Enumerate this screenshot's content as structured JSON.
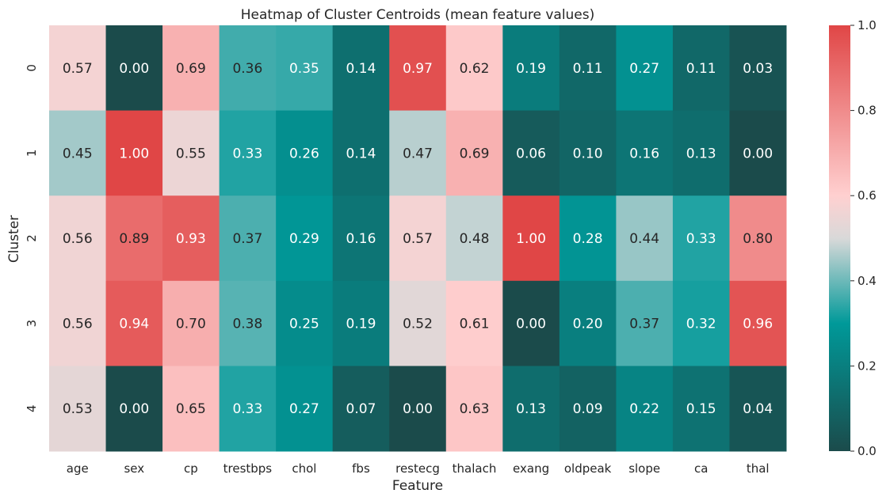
{
  "chart_data": {
    "type": "heatmap",
    "title": "Heatmap of Cluster Centroids (mean feature values)",
    "xlabel": "Feature",
    "ylabel": "Cluster",
    "x_categories": [
      "age",
      "sex",
      "cp",
      "trestbps",
      "chol",
      "fbs",
      "restecg",
      "thalach",
      "exang",
      "oldpeak",
      "slope",
      "ca",
      "thal"
    ],
    "y_categories": [
      "0",
      "1",
      "2",
      "3",
      "4"
    ],
    "values": [
      [
        0.57,
        0.0,
        0.69,
        0.36,
        0.35,
        0.14,
        0.97,
        0.62,
        0.19,
        0.11,
        0.27,
        0.11,
        0.03
      ],
      [
        0.45,
        1.0,
        0.55,
        0.33,
        0.26,
        0.14,
        0.47,
        0.69,
        0.06,
        0.1,
        0.16,
        0.13,
        0.0
      ],
      [
        0.56,
        0.89,
        0.93,
        0.37,
        0.29,
        0.16,
        0.57,
        0.48,
        1.0,
        0.28,
        0.44,
        0.33,
        0.8
      ],
      [
        0.56,
        0.94,
        0.7,
        0.38,
        0.25,
        0.19,
        0.52,
        0.61,
        0.0,
        0.2,
        0.37,
        0.32,
        0.96
      ],
      [
        0.53,
        0.0,
        0.65,
        0.33,
        0.27,
        0.07,
        0.0,
        0.63,
        0.13,
        0.09,
        0.22,
        0.15,
        0.04
      ]
    ],
    "vmin": 0.0,
    "vmax": 1.0,
    "annotation_format": "0.00",
    "colorbar": {
      "ticks": [
        "0.0",
        "0.2",
        "0.4",
        "0.6",
        "0.8",
        "1.0"
      ],
      "tick_values": [
        0.0,
        0.2,
        0.4,
        0.6,
        0.8,
        1.0
      ]
    },
    "colormap": {
      "low": "#1b4b4b",
      "mid_low": "#009999",
      "mid": "#d9d9d9",
      "mid_high": "#ffd0d0",
      "high": "#e04646"
    }
  }
}
